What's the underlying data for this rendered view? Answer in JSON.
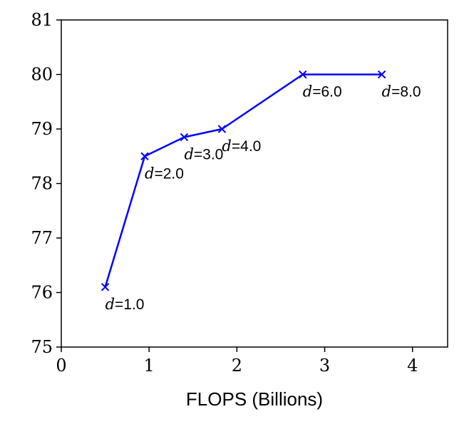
{
  "chart_data": {
    "type": "line",
    "xlabel": "FLOPS (Billions)",
    "ylabel": "",
    "xlim": [
      0,
      4.4
    ],
    "ylim": [
      75,
      81
    ],
    "xticks": [
      0,
      1,
      2,
      3,
      4
    ],
    "yticks": [
      75,
      76,
      77,
      78,
      79,
      80,
      81
    ],
    "grid": false,
    "color": "#0000ff",
    "marker": "x",
    "series": [
      {
        "points": [
          {
            "x": 0.5,
            "y": 76.1,
            "label_prefix": "d",
            "label_value": "=1.0"
          },
          {
            "x": 0.95,
            "y": 78.5,
            "label_prefix": "d",
            "label_value": "=2.0"
          },
          {
            "x": 1.4,
            "y": 78.85,
            "label_prefix": "d",
            "label_value": "=3.0"
          },
          {
            "x": 1.83,
            "y": 79.0,
            "label_prefix": "d",
            "label_value": "=4.0"
          },
          {
            "x": 2.75,
            "y": 80.0,
            "label_prefix": "d",
            "label_value": "=6.0"
          },
          {
            "x": 3.65,
            "y": 80.0,
            "label_prefix": "d",
            "label_value": "=8.0"
          }
        ]
      }
    ]
  }
}
